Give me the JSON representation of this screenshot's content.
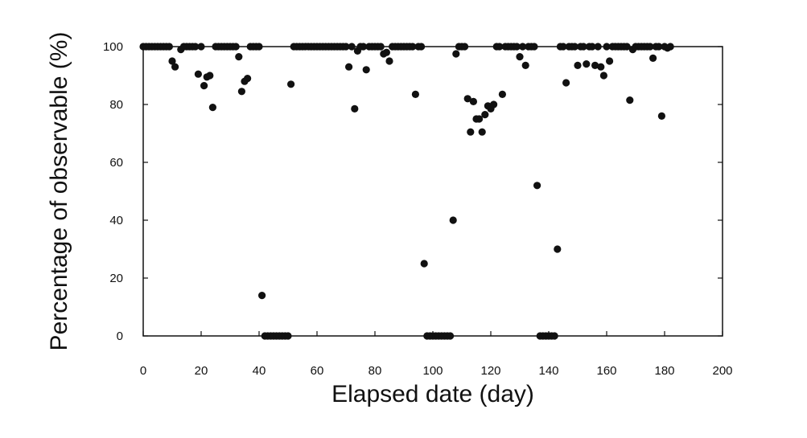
{
  "chart_data": {
    "type": "scatter",
    "xlabel": "Elapsed date (day)",
    "ylabel": "Percentage of observable (%)",
    "xlim": [
      0,
      200
    ],
    "ylim": [
      0,
      100
    ],
    "xticks": [
      0,
      20,
      40,
      60,
      80,
      100,
      120,
      140,
      160,
      180,
      200
    ],
    "yticks": [
      0,
      20,
      40,
      60,
      80,
      100
    ],
    "grid": false,
    "marker_color": "#111111",
    "points": [
      [
        0,
        100
      ],
      [
        1,
        100
      ],
      [
        2,
        100
      ],
      [
        3,
        100
      ],
      [
        4,
        100
      ],
      [
        5,
        100
      ],
      [
        6,
        100
      ],
      [
        7,
        100
      ],
      [
        8,
        100
      ],
      [
        9,
        100
      ],
      [
        10,
        95
      ],
      [
        11,
        93
      ],
      [
        13,
        99
      ],
      [
        14,
        100
      ],
      [
        15,
        100
      ],
      [
        16,
        100
      ],
      [
        17,
        100
      ],
      [
        18,
        100
      ],
      [
        19,
        90.5
      ],
      [
        20,
        100
      ],
      [
        21,
        86.5
      ],
      [
        22,
        89.5
      ],
      [
        23,
        90
      ],
      [
        24,
        79
      ],
      [
        25,
        100
      ],
      [
        26,
        100
      ],
      [
        27,
        100
      ],
      [
        28,
        100
      ],
      [
        29,
        100
      ],
      [
        30,
        100
      ],
      [
        31,
        100
      ],
      [
        32,
        100
      ],
      [
        33,
        96.5
      ],
      [
        34,
        84.5
      ],
      [
        35,
        88
      ],
      [
        36,
        89
      ],
      [
        37,
        100
      ],
      [
        38,
        100
      ],
      [
        39,
        100
      ],
      [
        40,
        100
      ],
      [
        41,
        14
      ],
      [
        42,
        0
      ],
      [
        43,
        0
      ],
      [
        44,
        0
      ],
      [
        45,
        0
      ],
      [
        46,
        0
      ],
      [
        47,
        0
      ],
      [
        48,
        0
      ],
      [
        49,
        0
      ],
      [
        50,
        0
      ],
      [
        51,
        87
      ],
      [
        52,
        100
      ],
      [
        53,
        100
      ],
      [
        54,
        100
      ],
      [
        55,
        100
      ],
      [
        56,
        100
      ],
      [
        57,
        100
      ],
      [
        58,
        100
      ],
      [
        59,
        100
      ],
      [
        60,
        100
      ],
      [
        61,
        100
      ],
      [
        62,
        100
      ],
      [
        63,
        100
      ],
      [
        64,
        100
      ],
      [
        65,
        100
      ],
      [
        66,
        100
      ],
      [
        67,
        100
      ],
      [
        68,
        100
      ],
      [
        69,
        100
      ],
      [
        70,
        100
      ],
      [
        71,
        93
      ],
      [
        72,
        100
      ],
      [
        73,
        78.5
      ],
      [
        74,
        98.5
      ],
      [
        75,
        100
      ],
      [
        76,
        100
      ],
      [
        77,
        92
      ],
      [
        78,
        100
      ],
      [
        79,
        100
      ],
      [
        80,
        100
      ],
      [
        81,
        100
      ],
      [
        82,
        100
      ],
      [
        83,
        97.5
      ],
      [
        84,
        98
      ],
      [
        85,
        95
      ],
      [
        86,
        100
      ],
      [
        87,
        100
      ],
      [
        88,
        100
      ],
      [
        89,
        100
      ],
      [
        90,
        100
      ],
      [
        91,
        100
      ],
      [
        92,
        100
      ],
      [
        93,
        100
      ],
      [
        94,
        83.5
      ],
      [
        95,
        100
      ],
      [
        96,
        100
      ],
      [
        97,
        25
      ],
      [
        98,
        0
      ],
      [
        99,
        0
      ],
      [
        100,
        0
      ],
      [
        101,
        0
      ],
      [
        102,
        0
      ],
      [
        103,
        0
      ],
      [
        104,
        0
      ],
      [
        105,
        0
      ],
      [
        106,
        0
      ],
      [
        107,
        40
      ],
      [
        108,
        97.5
      ],
      [
        109,
        100
      ],
      [
        110,
        100
      ],
      [
        111,
        100
      ],
      [
        112,
        82
      ],
      [
        113,
        70.5
      ],
      [
        114,
        81
      ],
      [
        115,
        75
      ],
      [
        116,
        75
      ],
      [
        117,
        70.5
      ],
      [
        118,
        76.5
      ],
      [
        119,
        79.5
      ],
      [
        120,
        78.5
      ],
      [
        121,
        80
      ],
      [
        122,
        100
      ],
      [
        123,
        100
      ],
      [
        124,
        83.5
      ],
      [
        125,
        100
      ],
      [
        126,
        100
      ],
      [
        127,
        100
      ],
      [
        128,
        100
      ],
      [
        129,
        100
      ],
      [
        130,
        96.5
      ],
      [
        131,
        100
      ],
      [
        132,
        93.5
      ],
      [
        133,
        100
      ],
      [
        134,
        100
      ],
      [
        135,
        100
      ],
      [
        136,
        52
      ],
      [
        137,
        0
      ],
      [
        138,
        0
      ],
      [
        139,
        0
      ],
      [
        140,
        0
      ],
      [
        141,
        0
      ],
      [
        142,
        0
      ],
      [
        143,
        30
      ],
      [
        144,
        100
      ],
      [
        145,
        100
      ],
      [
        146,
        87.5
      ],
      [
        147,
        100
      ],
      [
        148,
        100
      ],
      [
        149,
        100
      ],
      [
        150,
        93.5
      ],
      [
        151,
        100
      ],
      [
        152,
        100
      ],
      [
        153,
        94
      ],
      [
        154,
        100
      ],
      [
        155,
        100
      ],
      [
        156,
        93.5
      ],
      [
        157,
        100
      ],
      [
        158,
        93
      ],
      [
        159,
        90
      ],
      [
        160,
        100
      ],
      [
        161,
        95
      ],
      [
        162,
        100
      ],
      [
        163,
        100
      ],
      [
        164,
        100
      ],
      [
        165,
        100
      ],
      [
        166,
        100
      ],
      [
        167,
        100
      ],
      [
        168,
        81.5
      ],
      [
        169,
        99
      ],
      [
        170,
        100
      ],
      [
        171,
        100
      ],
      [
        172,
        100
      ],
      [
        173,
        100
      ],
      [
        174,
        100
      ],
      [
        175,
        100
      ],
      [
        176,
        96
      ],
      [
        177,
        100
      ],
      [
        178,
        100
      ],
      [
        179,
        76
      ],
      [
        180,
        100
      ],
      [
        181,
        99.5
      ],
      [
        182,
        100
      ]
    ]
  }
}
